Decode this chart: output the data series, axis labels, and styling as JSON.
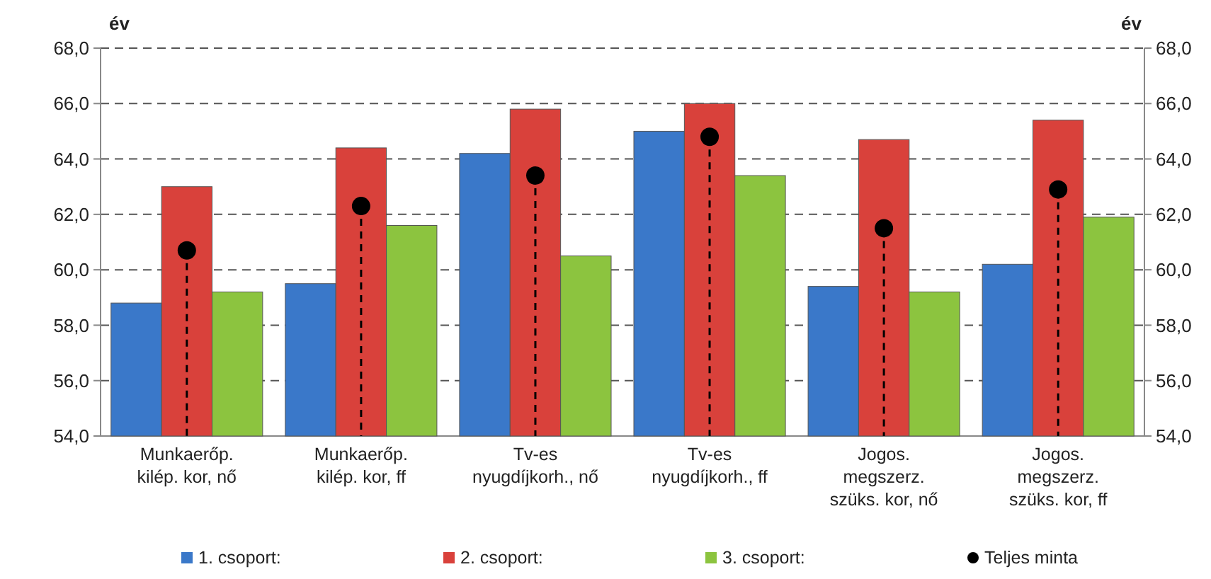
{
  "chart_data": {
    "type": "bar",
    "ylabel": "év",
    "y2label": "év",
    "categories": [
      "Munkaerőp.\nkilép. kor, nő",
      "Munkaerőp.\nkilép. kor, ff",
      "Tv-es\nnyugdíjkorh., nő",
      "Tv-es\nnyugdíjkorh., ff",
      "Jogos.\nmegszerz.\nszüks. kor, nő",
      "Jogos.\nmegszerz.\nszüks. kor, ff"
    ],
    "series": [
      {
        "name": "1. csoport:",
        "color": "#3a78c9",
        "values": [
          58.8,
          59.5,
          64.2,
          65.0,
          59.4,
          60.2
        ]
      },
      {
        "name": "2. csoport:",
        "color": "#d9413b",
        "values": [
          63.0,
          64.4,
          65.8,
          66.0,
          64.7,
          65.4
        ]
      },
      {
        "name": "3. csoport:",
        "color": "#8cc43f",
        "values": [
          59.2,
          61.6,
          60.5,
          63.4,
          59.2,
          61.9
        ]
      },
      {
        "name": "Teljes minta",
        "type": "lollipop",
        "color": "#000000",
        "line_style": "dashed",
        "values": [
          60.7,
          62.3,
          63.4,
          64.8,
          61.5,
          62.9
        ]
      }
    ],
    "ylim": [
      54,
      68
    ],
    "yticks": [
      {
        "value": 54,
        "label": "54,0"
      },
      {
        "value": 56,
        "label": "56,0"
      },
      {
        "value": 58,
        "label": "58,0"
      },
      {
        "value": 60,
        "label": "60,0"
      },
      {
        "value": 62,
        "label": "62,0"
      },
      {
        "value": 64,
        "label": "64,0"
      },
      {
        "value": 66,
        "label": "66,0"
      },
      {
        "value": 68,
        "label": "68,0"
      }
    ],
    "y2lim": [
      54,
      68
    ],
    "y2ticks": [
      {
        "value": 54,
        "label": "54,0"
      },
      {
        "value": 56,
        "label": "56,0"
      },
      {
        "value": 58,
        "label": "58,0"
      },
      {
        "value": 60,
        "label": "60,0"
      },
      {
        "value": 62,
        "label": "62,0"
      },
      {
        "value": 64,
        "label": "64,0"
      },
      {
        "value": 66,
        "label": "66,0"
      },
      {
        "value": 68,
        "label": "68,0"
      }
    ],
    "grid": "y",
    "legend": "bottom"
  }
}
